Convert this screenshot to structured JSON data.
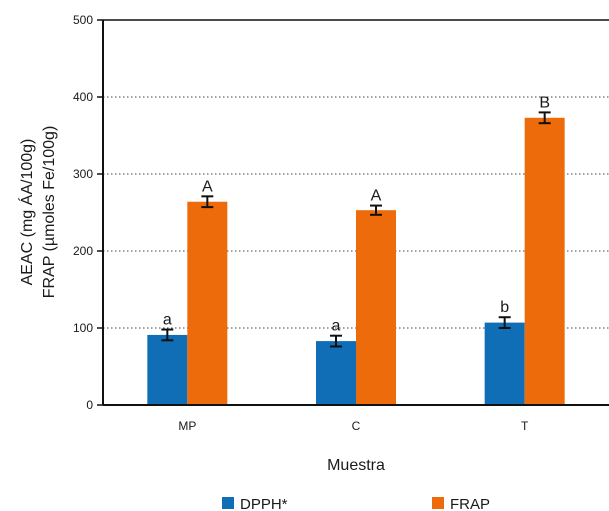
{
  "chart_data": {
    "type": "bar",
    "categories": [
      "MP",
      "C",
      "T"
    ],
    "series": [
      {
        "name": "DPPH*",
        "color": "#0f6eb5",
        "values": [
          91,
          83,
          107
        ],
        "errors": [
          7,
          7,
          7
        ],
        "letters": [
          "a",
          "a",
          "b"
        ]
      },
      {
        "name": "FRAP",
        "color": "#ee6b0b",
        "values": [
          264,
          253,
          373
        ],
        "errors": [
          7,
          6,
          7
        ],
        "letters": [
          "A",
          "A",
          "B"
        ]
      }
    ],
    "ylabel_line1": "AEAC (mg ÁA/100g)",
    "ylabel_line2": "FRAP (µmoles Fe/100g)",
    "xlabel": "Muestra",
    "ylim": [
      0,
      500
    ],
    "yticks": [
      0,
      100,
      200,
      300,
      400,
      500
    ],
    "grid": "horizontal-dotted",
    "legend_position": "bottom"
  }
}
